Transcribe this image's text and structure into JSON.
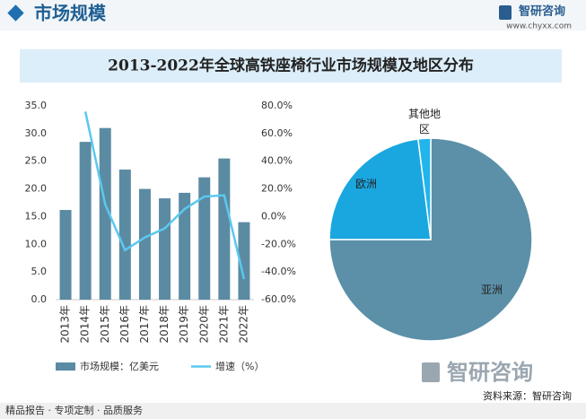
{
  "header": {
    "title": "市场规模",
    "brand": "智研咨询",
    "url": "www.chyxx.com"
  },
  "chart_data": [
    {
      "type": "bar",
      "title": "2013-2022年全球高铁座椅行业市场规模及地区分布",
      "categories": [
        "2013年",
        "2014年",
        "2015年",
        "2016年",
        "2017年",
        "2018年",
        "2019年",
        "2020年",
        "2021年",
        "2022年"
      ],
      "series": [
        {
          "name": "市场规模：亿美元",
          "type": "bar",
          "color": "#5b8ba3",
          "values": [
            16.2,
            28.5,
            31.0,
            23.5,
            20.0,
            18.3,
            19.3,
            22.1,
            25.5,
            14.0
          ]
        },
        {
          "name": "增速（%）",
          "type": "line",
          "axis": "y2",
          "color": "#5bc8f0",
          "values": [
            null,
            75.9,
            8.8,
            -24.2,
            -15.0,
            -8.5,
            5.5,
            14.5,
            15.4,
            -45.1
          ]
        }
      ],
      "ylim": [
        0,
        35
      ],
      "yticks": [
        {
          "value": 0,
          "label": "0.0"
        },
        {
          "value": 5,
          "label": "5.0"
        },
        {
          "value": 10,
          "label": "10.0"
        },
        {
          "value": 15,
          "label": "15.0"
        },
        {
          "value": 20,
          "label": "20.0"
        },
        {
          "value": 25,
          "label": "25.0"
        },
        {
          "value": 30,
          "label": "30.0"
        },
        {
          "value": 35,
          "label": "35.0"
        }
      ],
      "y2lim": [
        -60,
        80
      ],
      "y2ticks": [
        {
          "value": -60,
          "label": "-60.0%"
        },
        {
          "value": -40,
          "label": "-40.0%"
        },
        {
          "value": -20,
          "label": "-20.0%"
        },
        {
          "value": 0,
          "label": "0.0%"
        },
        {
          "value": 20,
          "label": "20.0%"
        },
        {
          "value": 40,
          "label": "40.0%"
        },
        {
          "value": 60,
          "label": "60.0%"
        },
        {
          "value": 80,
          "label": "80.0%"
        }
      ]
    },
    {
      "type": "pie",
      "categories": [
        "亚洲",
        "欧洲",
        "其他地区"
      ],
      "values": [
        75,
        23,
        2
      ],
      "colors": [
        "#5b90a8",
        "#1aa7e0",
        "#22b5ec"
      ]
    }
  ],
  "footer": {
    "slogan": "精品报告 · 专项定制 · 品质服务",
    "source": "资料来源：智研咨询",
    "brand": "智研咨询"
  }
}
